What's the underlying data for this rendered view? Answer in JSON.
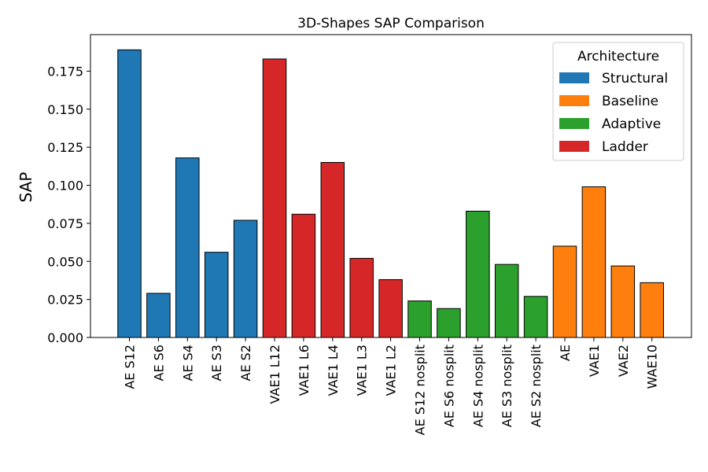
{
  "chart_data": {
    "type": "bar",
    "title": "3D-Shapes SAP Comparison",
    "xlabel": "",
    "ylabel": "SAP",
    "ylim": [
      0,
      0.199
    ],
    "yticks": [
      "0.000",
      "0.025",
      "0.050",
      "0.075",
      "0.100",
      "0.125",
      "0.150",
      "0.175"
    ],
    "grid": false,
    "legend": {
      "title": "Architecture",
      "placement": "top-right",
      "entries": [
        {
          "name": "Structural",
          "color": "#1f77b4"
        },
        {
          "name": "Baseline",
          "color": "#ff7f0e"
        },
        {
          "name": "Adaptive",
          "color": "#2ca02c"
        },
        {
          "name": "Ladder",
          "color": "#d62728"
        }
      ]
    },
    "categories": [
      "AE S12",
      "AE S6",
      "AE S4",
      "AE S3",
      "AE S2",
      "VAE1 L12",
      "VAE1 L6",
      "VAE1 L4",
      "VAE1 L3",
      "VAE1 L2",
      "AE S12 nosplit",
      "AE S6 nosplit",
      "AE S4 nosplit",
      "AE S3 nosplit",
      "AE S2 nosplit",
      "AE",
      "VAE1",
      "VAE2",
      "WAE10"
    ],
    "values": [
      0.189,
      0.029,
      0.118,
      0.056,
      0.077,
      0.183,
      0.081,
      0.115,
      0.052,
      0.038,
      0.024,
      0.019,
      0.083,
      0.048,
      0.027,
      0.06,
      0.099,
      0.047,
      0.036
    ],
    "groups": [
      "Structural",
      "Structural",
      "Structural",
      "Structural",
      "Structural",
      "Ladder",
      "Ladder",
      "Ladder",
      "Ladder",
      "Ladder",
      "Adaptive",
      "Adaptive",
      "Adaptive",
      "Adaptive",
      "Adaptive",
      "Baseline",
      "Baseline",
      "Baseline",
      "Baseline"
    ]
  }
}
